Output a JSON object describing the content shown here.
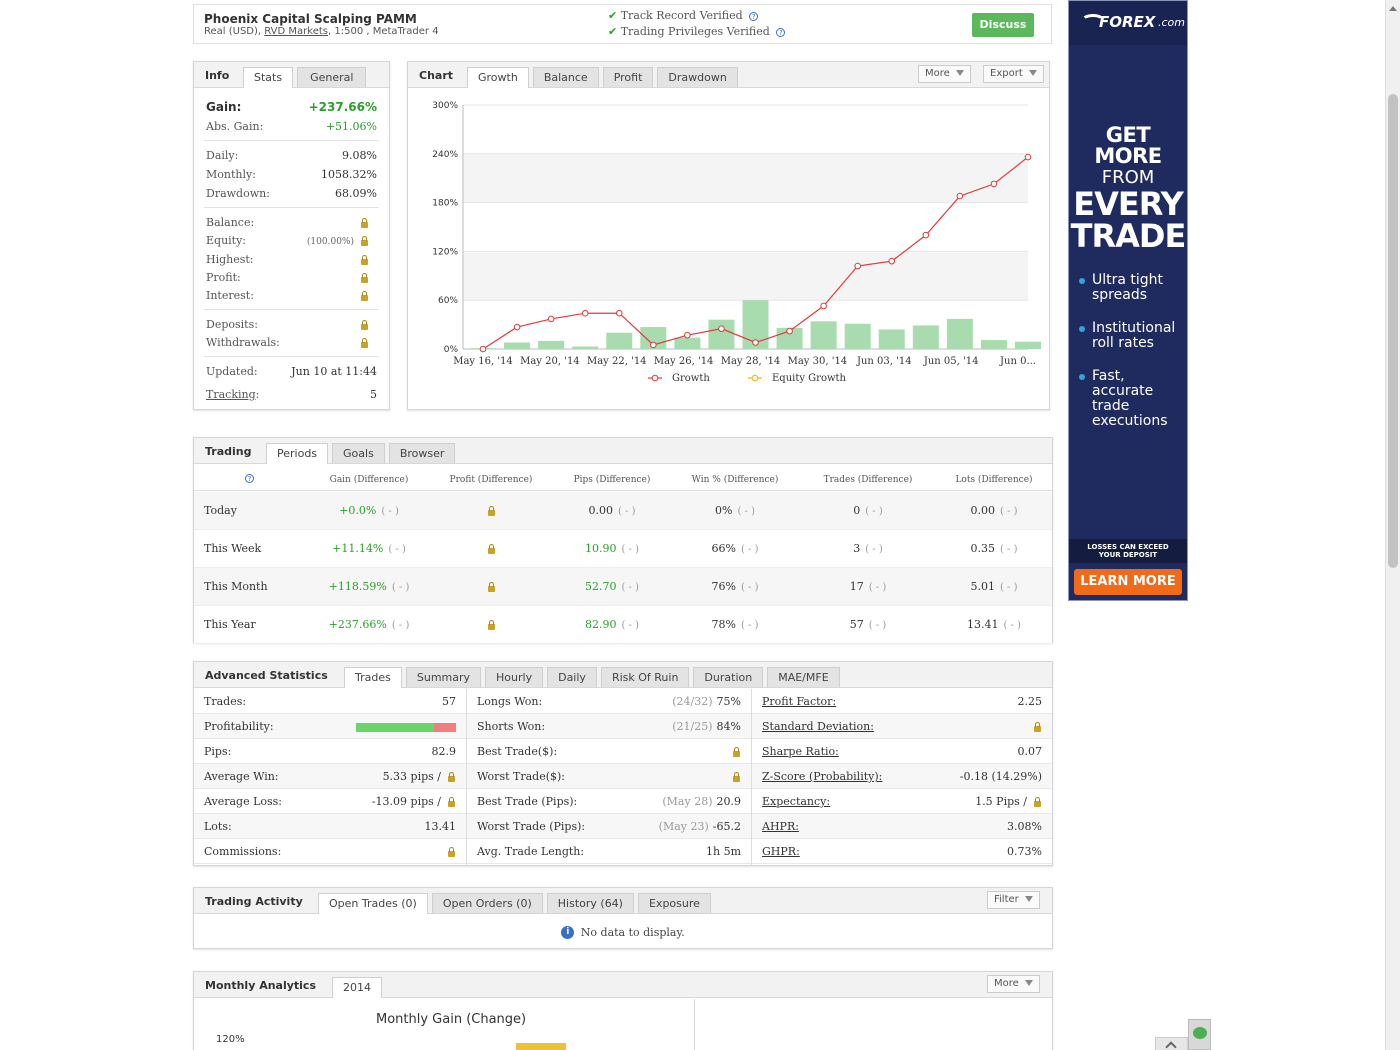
{
  "header": {
    "system_name": "Phoenix Capital Scalping PAMM",
    "account_info_prefix": "Real (USD),",
    "broker": "RVD Markets",
    "account_info_suffix": ", 1:500 , MetaTrader 4",
    "verified_track": "Track Record Verified",
    "verified_privileges": "Trading Privileges Verified",
    "discuss_label": "Discuss"
  },
  "info": {
    "title": "Info",
    "tabs": [
      "Stats",
      "General"
    ],
    "gain_label": "Gain:",
    "gain_value": "+237.66%",
    "abs_gain_label": "Abs. Gain:",
    "abs_gain_value": "+51.06%",
    "daily_label": "Daily:",
    "daily_value": "9.08%",
    "monthly_label": "Monthly:",
    "monthly_value": "1058.32%",
    "drawdown_label": "Drawdown:",
    "drawdown_value": "68.09%",
    "balance_label": "Balance:",
    "equity_label": "Equity:",
    "equity_pct": "(100.00%)",
    "highest_label": "Highest:",
    "profit_label": "Profit:",
    "interest_label": "Interest:",
    "deposits_label": "Deposits:",
    "withdrawals_label": "Withdrawals:",
    "updated_label": "Updated:",
    "updated_value": "Jun 10 at 11:44",
    "tracking_label": "Tracking",
    "tracking_colon": ":",
    "tracking_value": "5"
  },
  "chart_panel": {
    "title": "Chart",
    "tabs": [
      "Growth",
      "Balance",
      "Profit",
      "Drawdown"
    ],
    "more_label": "More",
    "export_label": "Export"
  },
  "chart_data": {
    "type": "line",
    "y_ticks": [
      "300%",
      "240%",
      "180%",
      "120%",
      "60%",
      "0%"
    ],
    "ylim": [
      0,
      300
    ],
    "x_tick_labels": [
      "May 16, '14",
      "May 20, '14",
      "May 22, '14",
      "May 26, '14",
      "May 28, '14",
      "May 30, '14",
      "Jun 03, '14",
      "Jun 05, '14",
      "Jun 0..."
    ],
    "growth": [
      0,
      27,
      37,
      44,
      44,
      5,
      17,
      25,
      8,
      22,
      53,
      102,
      108,
      140,
      188,
      203,
      236
    ],
    "bars": [
      1,
      8,
      10,
      3,
      20,
      27,
      14,
      36,
      60,
      26,
      34,
      31,
      24,
      29,
      37,
      11,
      9
    ],
    "legend": [
      "Growth",
      "Equity Growth"
    ],
    "colors": {
      "growth": "#e03b3b",
      "equity": "#f0b400",
      "bars": "#a8dcae"
    }
  },
  "trading": {
    "title": "Trading",
    "tabs": [
      "Periods",
      "Goals",
      "Browser"
    ],
    "help_icon": "?",
    "columns": [
      "Gain (Difference)",
      "Profit (Difference)",
      "Pips (Difference)",
      "Win % (Difference)",
      "Trades (Difference)",
      "Lots (Difference)"
    ],
    "diff": "( - )",
    "rows": [
      {
        "period": "Today",
        "gain": "+0.0%",
        "pips": "0.00",
        "win": "0%",
        "trades": "0",
        "lots": "0.00"
      },
      {
        "period": "This Week",
        "gain": "+11.14%",
        "pips": "10.90",
        "win": "66%",
        "trades": "3",
        "lots": "0.35"
      },
      {
        "period": "This Month",
        "gain": "+118.59%",
        "pips": "52.70",
        "win": "76%",
        "trades": "17",
        "lots": "5.01"
      },
      {
        "period": "This Year",
        "gain": "+237.66%",
        "pips": "82.90",
        "win": "78%",
        "trades": "57",
        "lots": "13.41"
      }
    ]
  },
  "advanced": {
    "title": "Advanced Statistics",
    "tabs": [
      "Trades",
      "Summary",
      "Hourly",
      "Daily",
      "Risk Of Ruin",
      "Duration",
      "MAE/MFE"
    ],
    "profitability_win_fraction": 0.78,
    "col1": [
      {
        "label": "Trades:",
        "value": "57"
      },
      {
        "label": "Profitability:",
        "value": ""
      },
      {
        "label": "Pips:",
        "value": "82.9"
      },
      {
        "label": "Average Win:",
        "value": "5.33 pips /"
      },
      {
        "label": "Average Loss:",
        "value": "-13.09 pips /"
      },
      {
        "label": "Lots:",
        "value": "13.41"
      },
      {
        "label": "Commissions:",
        "value": ""
      }
    ],
    "col2": [
      {
        "label": "Longs Won:",
        "pre": "(24/32)",
        "value": "75%"
      },
      {
        "label": "Shorts Won:",
        "pre": "(21/25)",
        "value": "84%"
      },
      {
        "label": "Best Trade($):",
        "pre": "",
        "value": ""
      },
      {
        "label": "Worst Trade($):",
        "pre": "",
        "value": ""
      },
      {
        "label": "Best Trade (Pips):",
        "pre": "(May 28)",
        "value": "20.9"
      },
      {
        "label": "Worst Trade (Pips):",
        "pre": "(May 23)",
        "value": "-65.2"
      },
      {
        "label": "Avg. Trade Length:",
        "pre": "",
        "value": "1h 5m"
      }
    ],
    "col3": [
      {
        "label": "Profit Factor:",
        "value": "2.25"
      },
      {
        "label": "Standard Deviation:",
        "value": ""
      },
      {
        "label": "Sharpe Ratio:",
        "value": "0.07"
      },
      {
        "label": "Z-Score (Probability):",
        "value": "-0.18 (14.29%)"
      },
      {
        "label": "Expectancy:",
        "value": "1.5 Pips /"
      },
      {
        "label": "AHPR:",
        "value": "3.08%"
      },
      {
        "label": "GHPR:",
        "value": "0.73%"
      }
    ]
  },
  "activity": {
    "title": "Trading Activity",
    "tabs": [
      "Open Trades (0)",
      "Open Orders (0)",
      "History (64)",
      "Exposure"
    ],
    "filter_label": "Filter",
    "empty_text": "No data to display."
  },
  "monthly": {
    "title": "Monthly Analytics",
    "tab": "2014",
    "more_label": "More",
    "chart_title": "Monthly Gain (Change)",
    "y_tick": "120%"
  },
  "ad": {
    "brand": "FOREX",
    "brand_suffix": ".com",
    "line1": "GET MORE",
    "line2": "FROM",
    "line3": "EVERY",
    "line4": "TRADE",
    "bullets": [
      "Ultra tight spreads",
      "Institutional roll rates",
      "Fast, accurate trade executions"
    ],
    "disclaimer1": "LOSSES CAN EXCEED",
    "disclaimer2": "YOUR DEPOSIT",
    "cta": "LEARN MORE"
  }
}
